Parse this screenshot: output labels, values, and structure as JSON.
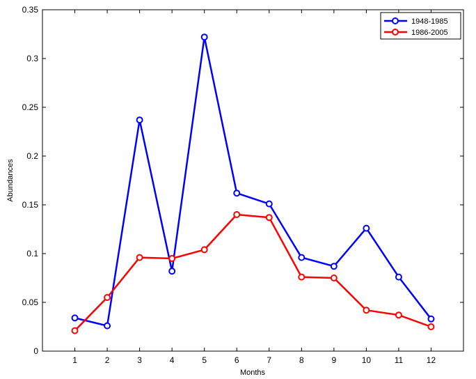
{
  "chart_data": {
    "type": "line",
    "title": "",
    "xlabel": "Months",
    "ylabel": "Abundances",
    "x": [
      1,
      2,
      3,
      4,
      5,
      6,
      7,
      8,
      9,
      10,
      11,
      12
    ],
    "xlim": [
      0,
      13
    ],
    "ylim": [
      0,
      0.35
    ],
    "yticks": [
      "0",
      "0.05",
      "0.1",
      "0.15",
      "0.2",
      "0.25",
      "0.3",
      "0.35"
    ],
    "xticks": [
      "1",
      "2",
      "3",
      "4",
      "5",
      "6",
      "7",
      "8",
      "9",
      "10",
      "11",
      "12"
    ],
    "grid": false,
    "legend_position": "top-right",
    "series": [
      {
        "name": "1948-1985",
        "color": "#0000ff",
        "values": [
          0.034,
          0.026,
          0.237,
          0.082,
          0.322,
          0.162,
          0.151,
          0.096,
          0.087,
          0.126,
          0.076,
          0.033
        ]
      },
      {
        "name": "1986-2005",
        "color": "#ff0000",
        "values": [
          0.021,
          0.055,
          0.096,
          0.095,
          0.104,
          0.14,
          0.137,
          0.076,
          0.075,
          0.042,
          0.037,
          0.025
        ]
      }
    ]
  }
}
